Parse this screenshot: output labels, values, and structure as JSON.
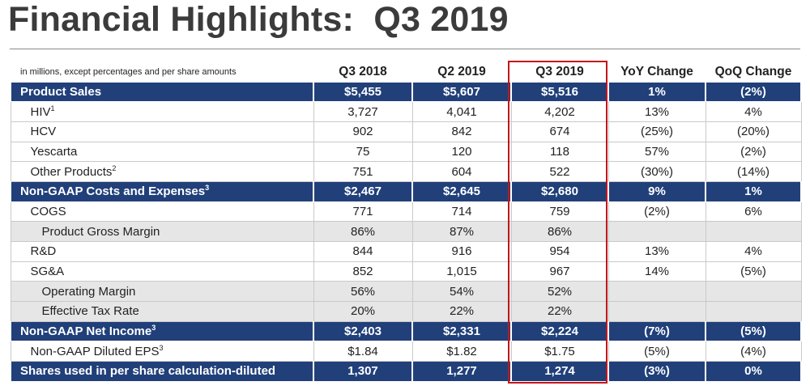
{
  "title": "Financial Highlights:  Q3 2019",
  "table": {
    "note": "in millions, except percentages and per share amounts",
    "columns": [
      "Q3 2018",
      "Q2 2019",
      "Q3 2019",
      "YoY Change",
      "QoQ Change"
    ],
    "highlighted_column": "Q3 2019",
    "highlight_color": "#c4161c",
    "section_color": "#21407a",
    "shade_color": "#e6e6e6",
    "rows": [
      {
        "label": "Product Sales",
        "sup": "",
        "style": "section",
        "values": [
          "$5,455",
          "$5,607",
          "$5,516",
          "1%",
          "(2%)"
        ]
      },
      {
        "label": "HIV",
        "sup": "1",
        "style": "item",
        "values": [
          "3,727",
          "4,041",
          "4,202",
          "13%",
          "4%"
        ]
      },
      {
        "label": "HCV",
        "sup": "",
        "style": "item",
        "values": [
          "902",
          "842",
          "674",
          "(25%)",
          "(20%)"
        ]
      },
      {
        "label": "Yescarta",
        "sup": "",
        "style": "item",
        "values": [
          "75",
          "120",
          "118",
          "57%",
          "(2%)"
        ]
      },
      {
        "label": "Other Products",
        "sup": "2",
        "style": "item",
        "values": [
          "751",
          "604",
          "522",
          "(30%)",
          "(14%)"
        ]
      },
      {
        "label": "Non-GAAP Costs and Expenses",
        "sup": "3",
        "style": "section",
        "values": [
          "$2,467",
          "$2,645",
          "$2,680",
          "9%",
          "1%"
        ]
      },
      {
        "label": "COGS",
        "sup": "",
        "style": "item",
        "values": [
          "771",
          "714",
          "759",
          "(2%)",
          "6%"
        ]
      },
      {
        "label": "Product Gross Margin",
        "sup": "",
        "style": "shaded",
        "values": [
          "86%",
          "87%",
          "86%",
          "",
          ""
        ]
      },
      {
        "label": "R&D",
        "sup": "",
        "style": "item",
        "values": [
          "844",
          "916",
          "954",
          "13%",
          "4%"
        ]
      },
      {
        "label": "SG&A",
        "sup": "",
        "style": "item",
        "values": [
          "852",
          "1,015",
          "967",
          "14%",
          "(5%)"
        ]
      },
      {
        "label": "Operating Margin",
        "sup": "",
        "style": "shaded",
        "values": [
          "56%",
          "54%",
          "52%",
          "",
          ""
        ]
      },
      {
        "label": "Effective Tax Rate",
        "sup": "",
        "style": "shaded",
        "values": [
          "20%",
          "22%",
          "22%",
          "",
          ""
        ]
      },
      {
        "label": "Non-GAAP Net Income",
        "sup": "3",
        "style": "section",
        "values": [
          "$2,403",
          "$2,331",
          "$2,224",
          "(7%)",
          "(5%)"
        ]
      },
      {
        "label": "Non-GAAP Diluted EPS",
        "sup": "3",
        "style": "item",
        "values": [
          "$1.84",
          "$1.82",
          "$1.75",
          "(5%)",
          "(4%)"
        ]
      },
      {
        "label": "Shares used in per share calculation-diluted",
        "sup": "",
        "style": "section",
        "values": [
          "1,307",
          "1,277",
          "1,274",
          "(3%)",
          "0%"
        ]
      }
    ]
  }
}
